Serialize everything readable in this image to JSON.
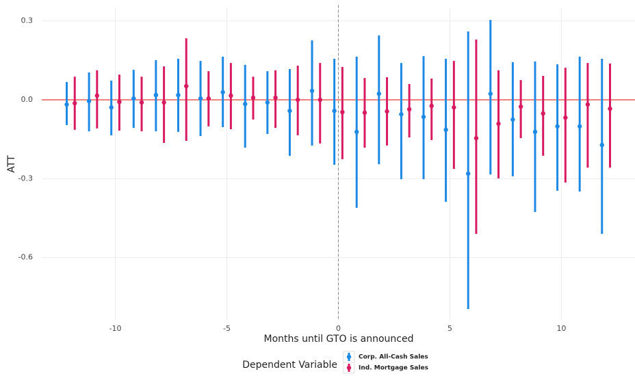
{
  "chart_data": {
    "type": "pointrange",
    "x_label": "Months until GTO is announced",
    "y_label": "ATT",
    "legend_title": "Dependent Variable",
    "x": [
      -12,
      -11,
      -10,
      -9,
      -8,
      -7,
      -6,
      -5,
      -4,
      -3,
      -2,
      -1,
      0,
      1,
      2,
      3,
      4,
      5,
      6,
      7,
      8,
      9,
      10,
      11,
      12
    ],
    "series": [
      {
        "name": "Corp. All-Cash Sales",
        "color": "#1e88e5",
        "values": [
          -0.018,
          -0.005,
          -0.029,
          0.005,
          0.018,
          0.018,
          0.005,
          0.029,
          -0.016,
          -0.01,
          -0.042,
          0.034,
          -0.042,
          -0.122,
          0.023,
          -0.055,
          -0.065,
          -0.114,
          -0.281,
          0.023,
          -0.075,
          -0.122,
          -0.101,
          -0.101,
          -0.172
        ],
        "lower": [
          -0.096,
          -0.12,
          -0.135,
          -0.107,
          -0.12,
          -0.122,
          -0.138,
          -0.104,
          -0.182,
          -0.13,
          -0.213,
          -0.174,
          -0.247,
          -0.411,
          -0.245,
          -0.302,
          -0.302,
          -0.388,
          -0.796,
          -0.284,
          -0.291,
          -0.427,
          -0.346,
          -0.349,
          -0.51
        ],
        "upper": [
          0.068,
          0.104,
          0.073,
          0.114,
          0.151,
          0.156,
          0.148,
          0.164,
          0.133,
          0.109,
          0.117,
          0.226,
          0.156,
          0.164,
          0.245,
          0.14,
          0.166,
          0.156,
          0.26,
          0.304,
          0.143,
          0.146,
          0.135,
          0.164,
          0.156
        ]
      },
      {
        "name": "Ind. Mortgage Sales",
        "color": "#d81b60",
        "values": [
          -0.013,
          0.016,
          -0.008,
          -0.01,
          -0.01,
          0.052,
          0.005,
          0.016,
          0.008,
          0.008,
          0.0,
          0.0,
          -0.047,
          -0.049,
          -0.044,
          -0.036,
          -0.023,
          -0.029,
          -0.146,
          -0.091,
          -0.026,
          -0.052,
          -0.068,
          -0.018,
          -0.034
        ],
        "lower": [
          -0.114,
          -0.109,
          -0.117,
          -0.12,
          -0.164,
          -0.156,
          -0.101,
          -0.112,
          -0.075,
          -0.107,
          -0.135,
          -0.166,
          -0.226,
          -0.182,
          -0.174,
          -0.143,
          -0.153,
          -0.263,
          -0.51,
          -0.299,
          -0.146,
          -0.213,
          -0.315,
          -0.258,
          -0.258
        ],
        "upper": [
          0.088,
          0.112,
          0.096,
          0.088,
          0.127,
          0.234,
          0.109,
          0.14,
          0.088,
          0.112,
          0.13,
          0.14,
          0.125,
          0.083,
          0.086,
          0.06,
          0.081,
          0.148,
          0.229,
          0.112,
          0.075,
          0.091,
          0.122,
          0.14,
          0.138
        ]
      }
    ],
    "xlim": [
      -13.3,
      13.3
    ],
    "ylim": [
      -0.84,
      0.35
    ],
    "xticks": [
      -10,
      -5,
      0,
      5,
      10
    ],
    "yticks": [
      -0.6,
      -0.3,
      {
        "value": 0,
        "label": "0.0"
      },
      0.3
    ],
    "hline": 0,
    "hline_color": "#e53935",
    "vline": 0,
    "vline_color": "#888888",
    "grid": true
  }
}
